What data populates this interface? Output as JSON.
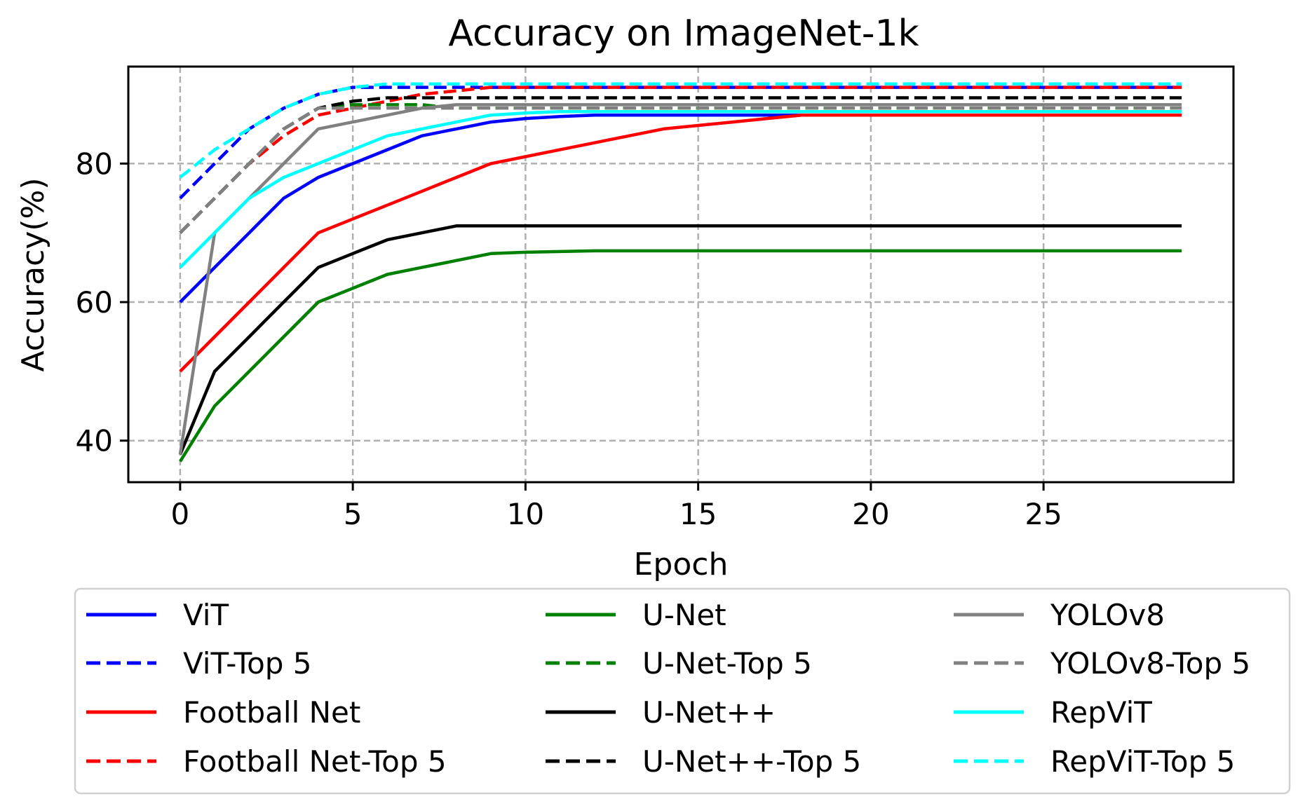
{
  "chart_data": {
    "type": "line",
    "title": "Accuracy on ImageNet-1k",
    "xlabel": "Epoch",
    "ylabel": "Accuracy(%)",
    "xlim": [
      -1.5,
      30.5
    ],
    "ylim": [
      34,
      94
    ],
    "xticks": [
      0,
      5,
      10,
      15,
      20,
      25
    ],
    "yticks": [
      40,
      60,
      80
    ],
    "grid": true,
    "legend": {
      "placement": "bottom",
      "columns": 3
    },
    "x": [
      0,
      1,
      2,
      3,
      4,
      5,
      6,
      7,
      8,
      9,
      10,
      11,
      12,
      13,
      14,
      15,
      16,
      17,
      18,
      19,
      20,
      21,
      22,
      23,
      24,
      25,
      26,
      27,
      28,
      29
    ],
    "series": [
      {
        "name": "ViT",
        "color": "#0000ff",
        "dash": "solid",
        "values": [
          60,
          65,
          70,
          75,
          78,
          80,
          82,
          84,
          85,
          86,
          86.5,
          86.8,
          87,
          87,
          87,
          87,
          87,
          87,
          87,
          87,
          87,
          87,
          87,
          87,
          87,
          87,
          87,
          87,
          87,
          87
        ]
      },
      {
        "name": "ViT-Top 5",
        "color": "#0000ff",
        "dash": "dashed",
        "values": [
          75,
          80,
          85,
          88,
          90,
          91,
          91,
          91,
          91,
          91,
          91,
          91,
          91,
          91,
          91,
          91,
          91,
          91,
          91,
          91,
          91,
          91,
          91,
          91,
          91,
          91,
          91,
          91,
          91,
          91
        ]
      },
      {
        "name": "Football Net",
        "color": "#ff0000",
        "dash": "solid",
        "values": [
          50,
          55,
          60,
          65,
          70,
          72,
          74,
          76,
          78,
          80,
          81,
          82,
          83,
          84,
          85,
          85.5,
          86,
          86.5,
          87,
          87,
          87,
          87,
          87,
          87,
          87,
          87,
          87,
          87,
          87,
          87
        ]
      },
      {
        "name": "Football Net-Top 5",
        "color": "#ff0000",
        "dash": "dashed",
        "values": [
          70,
          75,
          80,
          84,
          87,
          88,
          89,
          90,
          90.5,
          91,
          91,
          91,
          91,
          91,
          91,
          91,
          91,
          91,
          91,
          91,
          91,
          91,
          91,
          91,
          91,
          91,
          91,
          91,
          91,
          91
        ]
      },
      {
        "name": "U-Net",
        "color": "#008000",
        "dash": "solid",
        "values": [
          37,
          45,
          50,
          55,
          60,
          62,
          64,
          65,
          66,
          67,
          67.2,
          67.3,
          67.4,
          67.4,
          67.4,
          67.4,
          67.4,
          67.4,
          67.4,
          67.4,
          67.4,
          67.4,
          67.4,
          67.4,
          67.4,
          67.4,
          67.4,
          67.4,
          67.4,
          67.4
        ]
      },
      {
        "name": "U-Net-Top 5",
        "color": "#008000",
        "dash": "dashed",
        "values": [
          70,
          75,
          80,
          85,
          88,
          88.5,
          88.5,
          88.5,
          88,
          88,
          88,
          88,
          88,
          88,
          88,
          88,
          88,
          88,
          88,
          88,
          88,
          88,
          88,
          88,
          88,
          88,
          88,
          88,
          88,
          88
        ]
      },
      {
        "name": "U-Net++",
        "color": "#000000",
        "dash": "solid",
        "values": [
          38,
          50,
          55,
          60,
          65,
          67,
          69,
          70,
          71,
          71,
          71,
          71,
          71,
          71,
          71,
          71,
          71,
          71,
          71,
          71,
          71,
          71,
          71,
          71,
          71,
          71,
          71,
          71,
          71,
          71
        ]
      },
      {
        "name": "U-Net++-Top 5",
        "color": "#000000",
        "dash": "dashed",
        "values": [
          70,
          75,
          80,
          85,
          88,
          89,
          89.5,
          89.5,
          89.5,
          89.5,
          89.5,
          89.5,
          89.5,
          89.5,
          89.5,
          89.5,
          89.5,
          89.5,
          89.5,
          89.5,
          89.5,
          89.5,
          89.5,
          89.5,
          89.5,
          89.5,
          89.5,
          89.5,
          89.5,
          89.5
        ]
      },
      {
        "name": "YOLOv8",
        "color": "#808080",
        "dash": "solid",
        "values": [
          38,
          70,
          75,
          80,
          85,
          86,
          87,
          88,
          88.5,
          88.5,
          88.5,
          88.5,
          88.5,
          88.5,
          88.5,
          88.5,
          88.5,
          88.5,
          88.5,
          88.5,
          88.5,
          88.5,
          88.5,
          88.5,
          88.5,
          88.5,
          88.5,
          88.5,
          88.5,
          88.5
        ]
      },
      {
        "name": "YOLOv8-Top 5",
        "color": "#808080",
        "dash": "dashed",
        "values": [
          70,
          75,
          80,
          85,
          88,
          88,
          88,
          88,
          88,
          88,
          88,
          88,
          88,
          88,
          88,
          88,
          88,
          88,
          88,
          88,
          88,
          88,
          88,
          88,
          88,
          88,
          88,
          88,
          88,
          88
        ]
      },
      {
        "name": "RepViT",
        "color": "#00ffff",
        "dash": "solid",
        "values": [
          65,
          70,
          75,
          78,
          80,
          82,
          84,
          85,
          86,
          87,
          87.3,
          87.5,
          87.5,
          87.5,
          87.5,
          87.5,
          87.5,
          87.5,
          87.5,
          87.5,
          87.5,
          87.5,
          87.5,
          87.5,
          87.5,
          87.5,
          87.5,
          87.5,
          87.5,
          87.5
        ]
      },
      {
        "name": "RepViT-Top 5",
        "color": "#00ffff",
        "dash": "dashed",
        "values": [
          78,
          82,
          85,
          88,
          90,
          91,
          91.5,
          91.5,
          91.5,
          91.5,
          91.5,
          91.5,
          91.5,
          91.5,
          91.5,
          91.5,
          91.5,
          91.5,
          91.5,
          91.5,
          91.5,
          91.5,
          91.5,
          91.5,
          91.5,
          91.5,
          91.5,
          91.5,
          91.5,
          91.5
        ]
      }
    ]
  }
}
